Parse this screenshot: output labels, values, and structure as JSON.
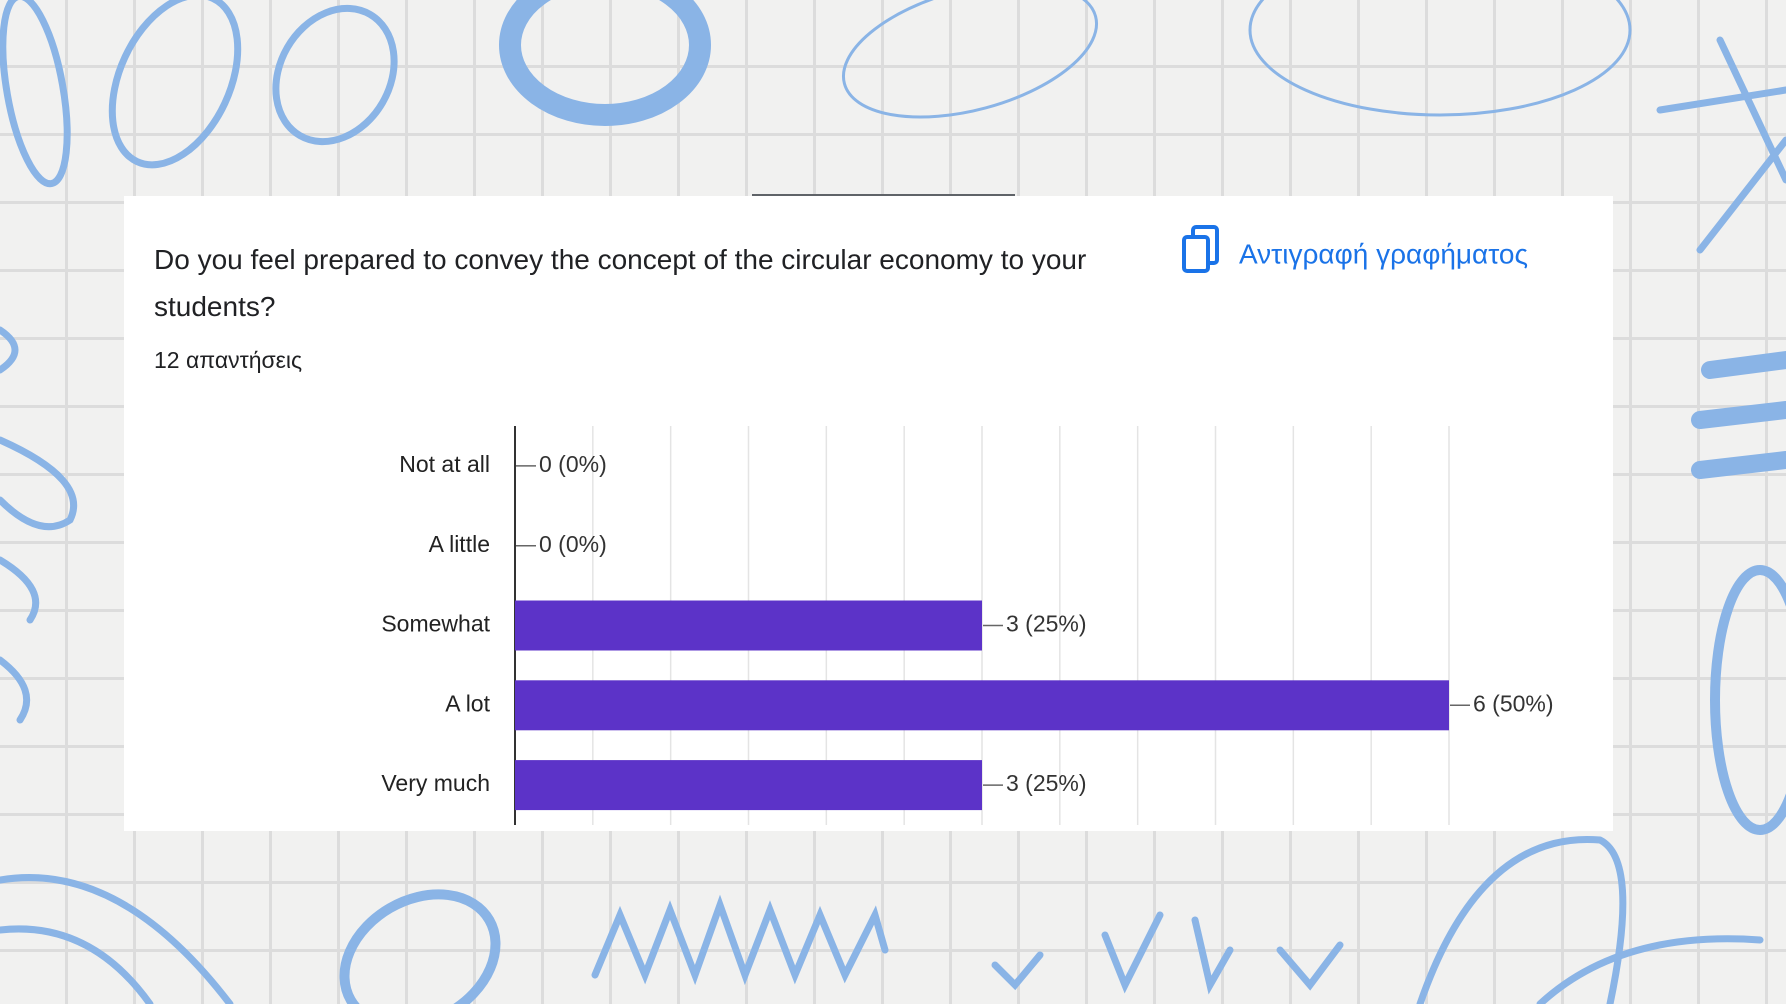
{
  "chart_data": {
    "type": "bar",
    "orientation": "horizontal",
    "title": "Do you feel prepared to convey the concept of the circular economy to your students?",
    "subtitle": "12 απαντήσεις",
    "copy_button": "Αντιγραφή γραφήματος",
    "categories": [
      "Not at all",
      "A little",
      "Somewhat",
      "A lot",
      "Very much"
    ],
    "values": [
      0,
      0,
      3,
      6,
      3
    ],
    "value_labels": [
      "0 (0%)",
      "0 (0%)",
      "3 (25%)",
      "6 (50%)",
      "3 (25%)"
    ],
    "color": "#5c33c8",
    "xlim": [
      0,
      6
    ],
    "xgrid": [
      0,
      0.5,
      1,
      1.5,
      2,
      2.5,
      3,
      3.5,
      4,
      4.5,
      5,
      5.5,
      6
    ]
  }
}
